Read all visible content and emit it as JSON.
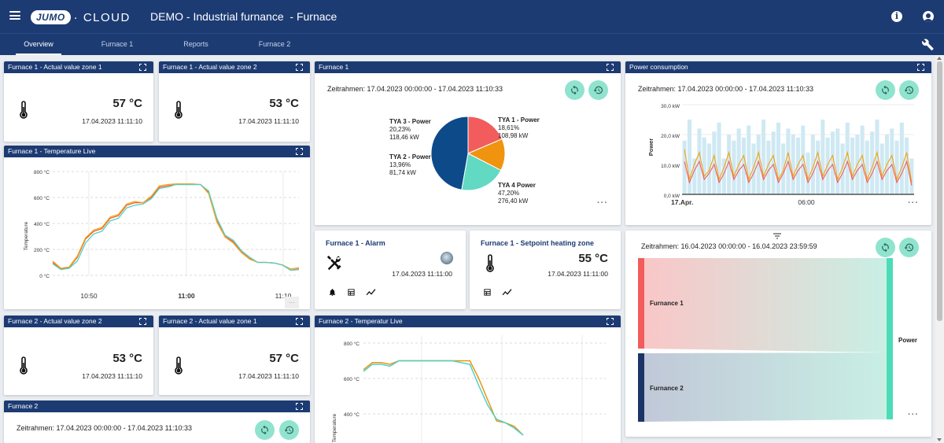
{
  "header": {
    "logo_badge": "JUMO",
    "logo_text": "· CLOUD",
    "title": "DEMO - Industrial furnance  - Furnace"
  },
  "tabs": [
    {
      "label": "Overview",
      "active": true
    },
    {
      "label": "Furnace 1",
      "active": false
    },
    {
      "label": "Reports",
      "active": false
    },
    {
      "label": "Furnace 2",
      "active": false
    }
  ],
  "widgets": {
    "f1_zone1": {
      "title": "Furnace 1 - Actual value zone 1",
      "value": "57 °C",
      "timestamp": "17.04.2023  11:11:10"
    },
    "f1_zone2": {
      "title": "Furnace 1 - Actual value zone 2",
      "value": "53 °C",
      "timestamp": "17.04.2023  11:11:10"
    },
    "f1_temp_live": {
      "title": "Furnace 1 - Temperature Live",
      "ylabel": "Temperature",
      "yticks": [
        "800 °C",
        "600 °C",
        "400 °C",
        "200 °C",
        "0 °C"
      ],
      "xticks": [
        "10:50",
        "11:00",
        "11:10"
      ],
      "more_label": "···"
    },
    "f2_zone2": {
      "title": "Furnace 2 - Actual value zone 2",
      "value": "53 °C",
      "timestamp": "17.04.2023  11:11:10"
    },
    "f2_zone1": {
      "title": "Furnace 2 - Actual value zone 1",
      "value": "57 °C",
      "timestamp": "17.04.2023  11:11:10"
    },
    "f2": {
      "title": "Furnace 2",
      "timerange": "Zeitrahmen: 17.04.2023 00:00:00 - 17.04.2023 11:10:33"
    },
    "f1_pie": {
      "title": "Furnace 1",
      "timerange": "Zeitrahmen: 17.04.2023 00:00:00 - 17.04.2023 11:10:33",
      "more_label": "···",
      "labels": [
        {
          "name": "TYA 1 - Power",
          "pct": "18,61%",
          "kw": "108,98 kW"
        },
        {
          "name": "TYA 2 - Power",
          "pct": "13,96%",
          "kw": "81,74 kW"
        },
        {
          "name": "TYA 3 - Power",
          "pct": "20,23%",
          "kw": "118,46 kW"
        },
        {
          "name": "TYA 4 Power",
          "pct": "47,20%",
          "kw": "276,40 kW"
        }
      ]
    },
    "f1_alarm": {
      "title": "Furnace 1 - Alarm",
      "timestamp": "17.04.2023  11:11:00"
    },
    "f1_setpoint": {
      "title": "Furnace 1 - Setpoint heating zone",
      "value": "55 °C",
      "timestamp": "17.04.2023  11:11:00"
    },
    "f2_temp_live": {
      "title": "Furnace 2 - Temperatur Live",
      "ylabel": "Temperature",
      "yticks": [
        "800 °C",
        "600 °C",
        "400 °C"
      ]
    },
    "power": {
      "title": "Power consumption",
      "timerange": "Zeitrahmen: 17.04.2023 00:00:00 - 17.04.2023 11:10:33",
      "ylabel": "Power",
      "yticks": [
        "30,0 kW",
        "20,0 kW",
        "10,0 kW",
        "0,0 kW"
      ],
      "xticks": [
        "17.Apr.",
        "06:00"
      ],
      "more_label": "···"
    },
    "sankey": {
      "timerange": "Zeitrahmen: 16.04.2023 00:00:00 - 16.04.2023 23:59:59",
      "source1": "Furnance 1",
      "source2": "Furnance 2",
      "target": "Power",
      "more_label": "···"
    }
  },
  "chart_data": [
    {
      "type": "line",
      "ylabel": "Temperature",
      "ylim": [
        0,
        800
      ],
      "x": [
        0,
        2,
        4,
        6,
        8,
        10,
        12,
        14,
        16,
        18,
        20,
        22,
        24,
        26,
        28,
        30,
        32,
        34,
        36,
        38,
        40,
        42,
        44,
        46,
        48,
        50,
        52,
        54,
        56,
        58,
        60
      ],
      "series": [
        {
          "values": [
            100,
            50,
            60,
            140,
            280,
            340,
            360,
            440,
            460,
            540,
            560,
            560,
            600,
            680,
            690,
            700,
            700,
            700,
            700,
            640,
            420,
            300,
            260,
            180,
            130,
            100,
            100,
            95,
            80,
            40,
            50
          ]
        },
        {
          "values": [
            110,
            55,
            65,
            150,
            290,
            350,
            370,
            450,
            470,
            550,
            570,
            560,
            610,
            690,
            700,
            705,
            705,
            705,
            700,
            630,
            410,
            295,
            250,
            175,
            125,
            100,
            100,
            95,
            80,
            50,
            60
          ]
        },
        {
          "values": [
            90,
            45,
            55,
            110,
            250,
            320,
            340,
            420,
            440,
            520,
            540,
            550,
            590,
            670,
            680,
            700,
            700,
            700,
            700,
            650,
            440,
            310,
            270,
            190,
            140,
            100,
            100,
            95,
            80,
            40,
            45
          ]
        }
      ]
    },
    {
      "type": "pie",
      "categories": [
        "TYA 1 - Power",
        "TYA 2 - Power",
        "TYA 3 - Power",
        "TYA 4 Power"
      ],
      "values": [
        108.98,
        81.74,
        118.46,
        276.4
      ],
      "colors": [
        "#f25c5c",
        "#f0930f",
        "#62d9c2",
        "#0c4a8a"
      ]
    },
    {
      "type": "line",
      "ylabel": "Temperature",
      "ylim": [
        300,
        800
      ],
      "x": [
        0,
        2,
        4,
        6,
        8,
        10,
        12,
        14,
        16,
        18,
        20,
        22,
        24,
        26,
        28,
        30,
        32,
        34,
        36
      ],
      "series": [
        {
          "values": [
            650,
            690,
            690,
            680,
            700,
            700,
            700,
            700,
            700,
            700,
            700,
            700,
            700,
            600,
            480,
            360,
            350,
            330,
            280
          ]
        },
        {
          "values": [
            640,
            680,
            680,
            670,
            700,
            700,
            700,
            700,
            700,
            700,
            700,
            690,
            680,
            560,
            450,
            370,
            350,
            320,
            280
          ]
        }
      ]
    },
    {
      "type": "bar",
      "ylabel": "Power",
      "ylim": [
        0,
        30
      ],
      "values": [
        18,
        25,
        12,
        22,
        19,
        17,
        21,
        24,
        12,
        20,
        18,
        22,
        19,
        23,
        17,
        20,
        25,
        18,
        21,
        24,
        17,
        22,
        20,
        19,
        23,
        14,
        20,
        18,
        25,
        19,
        21,
        22,
        17,
        24,
        19,
        20,
        23,
        18,
        21,
        25,
        17,
        20,
        22,
        18,
        24,
        19,
        12
      ],
      "series": [
        {
          "values": [
            15,
            5,
            10,
            14,
            6,
            8,
            13,
            5,
            9,
            14,
            6,
            10,
            13,
            5,
            9,
            14,
            6,
            10,
            13,
            5,
            8,
            14,
            6,
            10,
            13,
            5,
            9,
            14,
            6,
            10,
            13,
            5,
            9,
            14,
            6,
            10,
            13,
            5,
            9,
            14,
            6,
            10,
            13,
            5,
            9,
            14,
            4
          ]
        },
        {
          "values": [
            11,
            4,
            8,
            11,
            5,
            7,
            10,
            4,
            7,
            11,
            5,
            8,
            10,
            4,
            7,
            11,
            5,
            8,
            10,
            4,
            7,
            11,
            5,
            8,
            10,
            4,
            7,
            11,
            5,
            8,
            10,
            4,
            7,
            11,
            5,
            8,
            10,
            4,
            7,
            11,
            5,
            8,
            10,
            4,
            7,
            11,
            3
          ]
        }
      ]
    }
  ],
  "colors": {
    "header": "#1d3b73",
    "accent_button": "#90e3cf",
    "sankey_source1": "#f25c5c",
    "sankey_source2": "#1d3566",
    "sankey_target": "#4cdcb7"
  }
}
